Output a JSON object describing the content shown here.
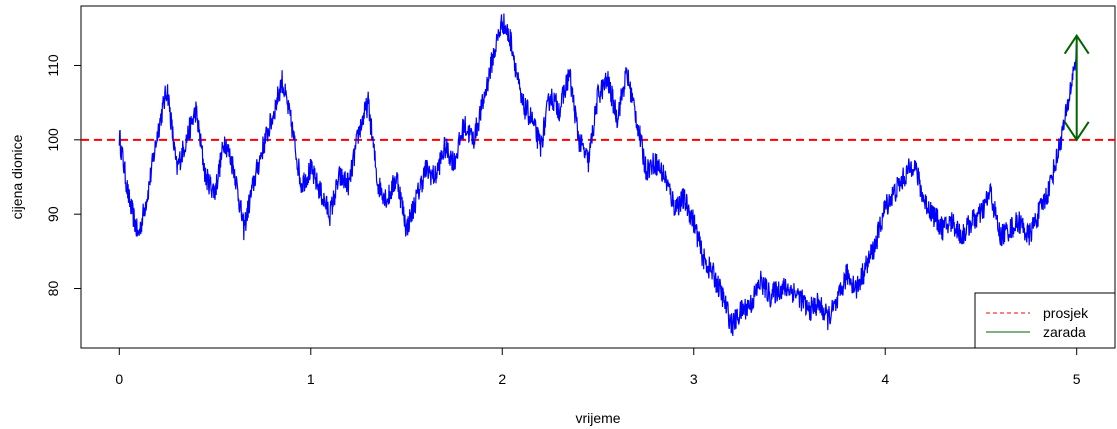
{
  "chart_data": {
    "type": "line",
    "title": "",
    "xlabel": "vrijeme",
    "ylabel": "cijena dionice",
    "xlim": [
      -0.2,
      5.2
    ],
    "ylim": [
      72,
      118
    ],
    "xticks": [
      0,
      1,
      2,
      3,
      4,
      5
    ],
    "xtick_labels": [
      "0",
      "1",
      "2",
      "3",
      "4",
      "5"
    ],
    "yticks": [
      80,
      90,
      100,
      110
    ],
    "ytick_labels": [
      "80",
      "90",
      "100",
      "110"
    ],
    "grid": false,
    "legend": {
      "position": "bottom-right",
      "entries": [
        {
          "label": "prosjek",
          "color": "#ff0000",
          "style": "dashed"
        },
        {
          "label": "zarada",
          "color": "#006400",
          "style": "solid"
        }
      ]
    },
    "series": [
      {
        "color": "#0000ff",
        "x": [
          0,
          0.05,
          0.1,
          0.15,
          0.2,
          0.25,
          0.3,
          0.35,
          0.4,
          0.45,
          0.5,
          0.55,
          0.6,
          0.65,
          0.7,
          0.75,
          0.8,
          0.85,
          0.9,
          0.95,
          1.0,
          1.05,
          1.1,
          1.15,
          1.2,
          1.25,
          1.3,
          1.35,
          1.4,
          1.45,
          1.5,
          1.55,
          1.6,
          1.65,
          1.7,
          1.75,
          1.8,
          1.85,
          1.9,
          1.95,
          2.0,
          2.05,
          2.1,
          2.15,
          2.2,
          2.25,
          2.3,
          2.35,
          2.4,
          2.45,
          2.5,
          2.55,
          2.6,
          2.65,
          2.7,
          2.75,
          2.8,
          2.85,
          2.9,
          2.95,
          3.0,
          3.05,
          3.1,
          3.15,
          3.2,
          3.25,
          3.3,
          3.35,
          3.4,
          3.45,
          3.5,
          3.55,
          3.6,
          3.65,
          3.7,
          3.75,
          3.8,
          3.85,
          3.9,
          3.95,
          4.0,
          4.05,
          4.1,
          4.15,
          4.2,
          4.25,
          4.3,
          4.35,
          4.4,
          4.45,
          4.5,
          4.55,
          4.6,
          4.65,
          4.7,
          4.75,
          4.8,
          4.85,
          4.9,
          4.95,
          5.0
        ],
        "y": [
          100.5,
          92,
          87,
          93,
          101,
          107,
          96,
          100,
          104,
          95,
          93,
          100,
          96,
          88,
          94,
          99,
          103,
          108,
          102,
          94,
          96,
          93,
          90,
          95,
          94,
          101,
          105,
          94,
          92,
          95,
          88,
          92,
          96,
          95,
          99,
          97,
          102,
          100,
          105,
          111,
          116,
          113,
          105,
          103,
          99,
          106,
          104,
          109,
          100,
          97,
          106,
          108,
          103,
          109,
          103,
          96,
          97,
          95,
          91,
          92,
          89,
          84,
          82,
          79,
          75,
          77,
          78,
          81,
          79,
          80,
          80,
          79,
          77,
          78,
          76,
          78,
          82,
          80,
          83,
          86,
          91,
          93,
          95,
          97,
          92,
          90,
          88,
          89,
          87,
          89,
          90,
          93,
          87,
          88,
          89,
          87,
          90,
          93,
          98,
          104,
          112
        ]
      }
    ],
    "mean_line": {
      "y": 100,
      "color": "#ff0000",
      "label": "prosjek"
    },
    "profit_arrow": {
      "x": 5,
      "y_from": 100,
      "y_to": 114,
      "color": "#006400",
      "label": "zarada"
    }
  }
}
